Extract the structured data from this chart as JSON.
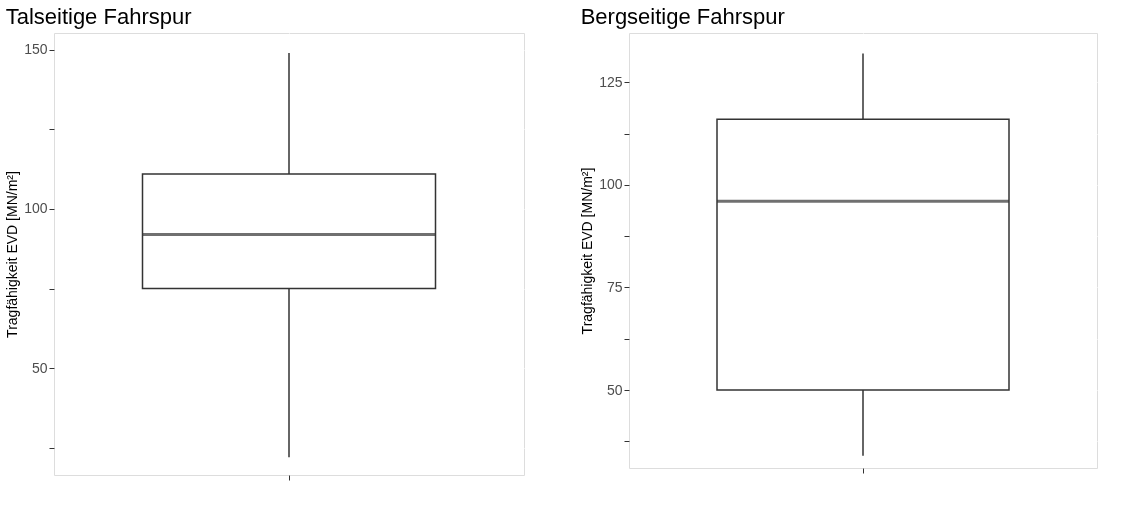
{
  "chart_data": [
    {
      "type": "box",
      "title": "Talseitige Fahrspur",
      "ylabel": "Tragfähigkeit EVD [MN/m²]",
      "categories": [
        null
      ],
      "grid": true,
      "ylim": [
        16.4,
        155.3
      ],
      "yticks": [
        {
          "value": 25,
          "label": null
        },
        50,
        {
          "value": 75,
          "label": null
        },
        100,
        {
          "value": 125,
          "label": null
        },
        150
      ],
      "boxes": [
        {
          "low": 22,
          "q1": 75,
          "median": 92,
          "q3": 111,
          "high": 149
        }
      ]
    },
    {
      "type": "box",
      "title": "Bergseitige Fahrspur",
      "ylabel": "Tragfähigkeit EVD [MN/m²]",
      "categories": [
        null
      ],
      "grid": true,
      "ylim": [
        31,
        137
      ],
      "yticks": [
        {
          "value": 37.5,
          "label": null
        },
        50,
        {
          "value": 62.5,
          "label": null
        },
        75,
        {
          "value": 87.5,
          "label": null
        },
        100,
        {
          "value": 112.5,
          "label": null
        },
        125
      ],
      "boxes": [
        {
          "low": 34,
          "q1": 50,
          "median": 96,
          "q3": 116,
          "high": 132
        }
      ]
    }
  ]
}
